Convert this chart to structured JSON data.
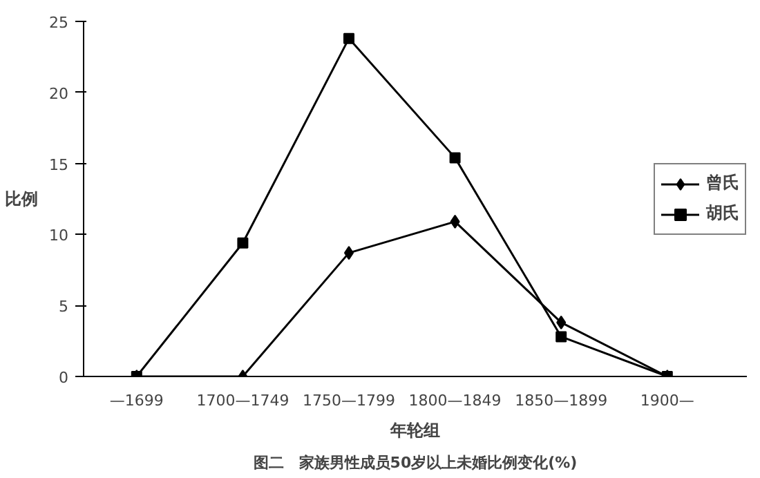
{
  "chart_data": {
    "type": "line",
    "title": "图二　家族男性成员50岁以上未婚比例变化(%)",
    "xlabel": "年轮组",
    "ylabel": "比例",
    "categories": [
      "—1699",
      "1700—1749",
      "1750—1799",
      "1800—1849",
      "1850—1899",
      "1900—"
    ],
    "series": [
      {
        "name": "曾氏",
        "color": "#000000",
        "marker": "diamond",
        "values": [
          0,
          0,
          8.7,
          10.9,
          3.8,
          0
        ]
      },
      {
        "name": "胡氏",
        "color": "#000000",
        "marker": "square",
        "values": [
          0,
          9.4,
          23.8,
          15.4,
          2.8,
          0
        ]
      }
    ],
    "ylim": [
      0,
      25
    ],
    "yticks": [
      0,
      5,
      10,
      15,
      20,
      25
    ],
    "grid": false,
    "legend": "right",
    "line_style": "solid"
  }
}
